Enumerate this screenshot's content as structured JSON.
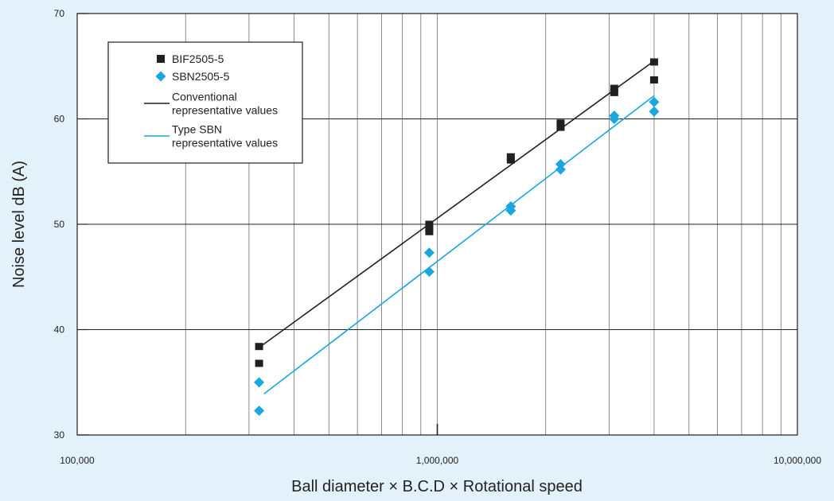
{
  "chart_data": {
    "type": "scatter",
    "title": "",
    "xlabel": "Ball diameter × B.C.D × Rotational speed",
    "ylabel": "Noise level dB (A)",
    "xscale": "log",
    "xlim": [
      100000,
      10000000
    ],
    "ylim": [
      30,
      70
    ],
    "x_ticks": [
      100000,
      1000000,
      10000000
    ],
    "x_tick_labels": [
      "100,000",
      "1,000,000",
      "10,000,000"
    ],
    "y_ticks": [
      30,
      40,
      50,
      60,
      70
    ],
    "y_tick_labels": [
      "30",
      "40",
      "50",
      "60",
      "70"
    ],
    "grid": true,
    "legend_position": "top-left",
    "series": [
      {
        "name": "BIF2505-5",
        "kind": "points",
        "marker": "square",
        "color": "#231f20",
        "x": [
          320000,
          320000,
          950000,
          950000,
          950000,
          1600000,
          1600000,
          2200000,
          2200000,
          3100000,
          3100000,
          4000000,
          4000000
        ],
        "y": [
          38.4,
          36.8,
          50.0,
          49.6,
          49.3,
          56.4,
          56.1,
          59.6,
          59.2,
          62.9,
          62.5,
          65.4,
          63.7
        ]
      },
      {
        "name": "SBN2505-5",
        "kind": "points",
        "marker": "diamond",
        "color": "#1aa6df",
        "x": [
          320000,
          320000,
          950000,
          950000,
          1600000,
          1600000,
          2200000,
          2200000,
          3100000,
          3100000,
          4000000,
          4000000
        ],
        "y": [
          35.0,
          32.3,
          47.3,
          45.5,
          51.7,
          51.3,
          55.7,
          55.2,
          60.3,
          60.0,
          61.6,
          60.7
        ]
      },
      {
        "name": "Conventional\nrepresentative values",
        "kind": "line",
        "color": "#231f20",
        "x": [
          320000,
          4000000
        ],
        "y": [
          38.3,
          65.5
        ]
      },
      {
        "name": "Type SBN\nrepresentative values",
        "kind": "line",
        "color": "#1aa6df",
        "x": [
          330000,
          4000000
        ],
        "y": [
          33.9,
          62.2
        ]
      }
    ]
  }
}
